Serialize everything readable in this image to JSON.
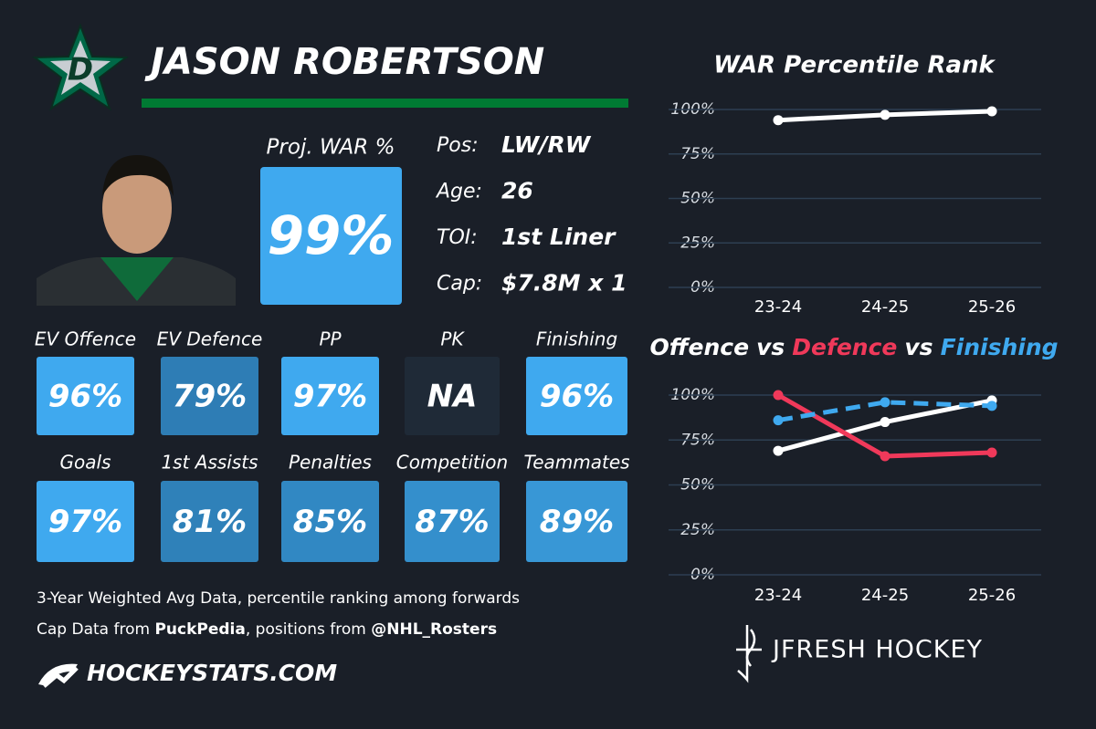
{
  "header": {
    "name": "JASON ROBERTSON"
  },
  "war": {
    "label": "Proj. WAR %",
    "value": "99%",
    "color": "#3fa9ef"
  },
  "info": [
    {
      "label": "Pos:",
      "value": "LW/RW"
    },
    {
      "label": "Age:",
      "value": "26"
    },
    {
      "label": "TOI:",
      "value": "1st Liner"
    },
    {
      "label": "Cap:",
      "value": "$7.8M x 1"
    }
  ],
  "tiles": [
    {
      "label": "EV Offence",
      "value": "96%",
      "color": "#3fa9ef"
    },
    {
      "label": "EV Defence",
      "value": "79%",
      "color": "#2e7db5"
    },
    {
      "label": "PP",
      "value": "97%",
      "color": "#3fa9ef"
    },
    {
      "label": "PK",
      "value": "NA",
      "color": "#1f2a37"
    },
    {
      "label": "Finishing",
      "value": "96%",
      "color": "#3fa9ef"
    },
    {
      "label": "Goals",
      "value": "97%",
      "color": "#3fa9ef"
    },
    {
      "label": "1st Assists",
      "value": "81%",
      "color": "#2f81b9"
    },
    {
      "label": "Penalties",
      "value": "85%",
      "color": "#3188c3"
    },
    {
      "label": "Competition",
      "value": "87%",
      "color": "#348fcc"
    },
    {
      "label": "Teammates",
      "value": "89%",
      "color": "#3897d6"
    }
  ],
  "footer": {
    "note": "3-Year Weighted Avg Data, percentile ranking among forwards",
    "credits": [
      {
        "text": "Cap Data from ",
        "bold": false
      },
      {
        "text": "PuckPedia",
        "bold": true
      },
      {
        "text": ", positions from ",
        "bold": false
      },
      {
        "text": "@NHL_Rosters",
        "bold": true
      }
    ],
    "brand": "HOCKEYSTATS.COM",
    "author": "JFRESH HOCKEY"
  },
  "chart_data": [
    {
      "type": "line",
      "title": "WAR Percentile Rank",
      "categories": [
        "23-24",
        "24-25",
        "25-26"
      ],
      "series": [
        {
          "color": "#ffffff",
          "values": [
            94,
            97,
            99
          ]
        }
      ],
      "ylim": [
        0,
        100
      ],
      "yticks": [
        {
          "value": 0,
          "label": "0%"
        },
        {
          "value": 25,
          "label": "25%"
        },
        {
          "value": 50,
          "label": "50%"
        },
        {
          "value": 75,
          "label": "75%"
        },
        {
          "value": 100,
          "label": "100%"
        }
      ],
      "grid": true
    },
    {
      "type": "line",
      "title_joiner": "vs",
      "categories": [
        "23-24",
        "24-25",
        "25-26"
      ],
      "series": [
        {
          "name": "Offence",
          "color": "#ffffff",
          "values": [
            69,
            85,
            97
          ]
        },
        {
          "name": "Defence",
          "color": "#f0395a",
          "values": [
            100,
            66,
            68
          ]
        },
        {
          "name": "Finishing",
          "color": "#3fa9ef",
          "values": [
            86,
            96,
            94
          ],
          "dashed": true
        }
      ],
      "ylim": [
        0,
        100
      ],
      "yticks": [
        {
          "value": 0,
          "label": "0%"
        },
        {
          "value": 25,
          "label": "25%"
        },
        {
          "value": 50,
          "label": "50%"
        },
        {
          "value": 75,
          "label": "75%"
        },
        {
          "value": 100,
          "label": "100%"
        }
      ],
      "grid": true
    }
  ]
}
